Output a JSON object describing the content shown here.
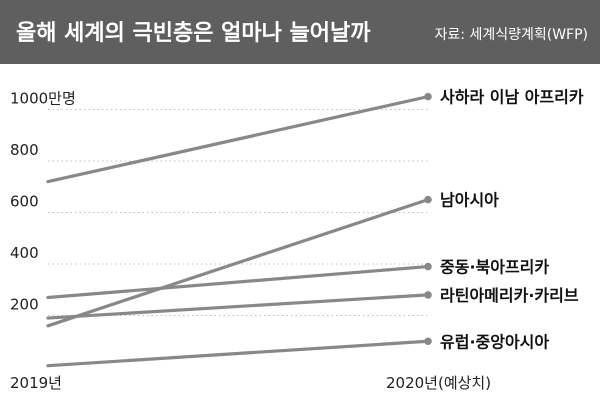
{
  "title": "올해 세계의 극빈층은 얼마나 늘어날까",
  "source": "자료: 세계식량계획(WFP)",
  "colors": {
    "header_bg": "#5f5f5f",
    "line": "#888888",
    "grid": "#bdbdbd"
  },
  "chart_data": {
    "type": "line",
    "title": "올해 세계의 극빈층은 얼마나 늘어날까",
    "xlabel": "",
    "ylabel": "",
    "x": [
      "2019년",
      "2020년(예상치)"
    ],
    "ylim": [
      0,
      1100
    ],
    "yticks": [
      200,
      400,
      600,
      800,
      1000
    ],
    "ytick_labels": [
      "200",
      "400",
      "600",
      "800",
      "1000만명"
    ],
    "grid": true,
    "series": [
      {
        "name": "사하라 이남 아프리카",
        "values": [
          720,
          1050
        ]
      },
      {
        "name": "남아시아",
        "values": [
          160,
          650
        ]
      },
      {
        "name": "중동·북아프리카",
        "values": [
          270,
          390
        ]
      },
      {
        "name": "라틴아메리카·카리브",
        "values": [
          190,
          280
        ]
      },
      {
        "name": "유럽·중앙아시아",
        "values": [
          5,
          100
        ]
      }
    ]
  }
}
